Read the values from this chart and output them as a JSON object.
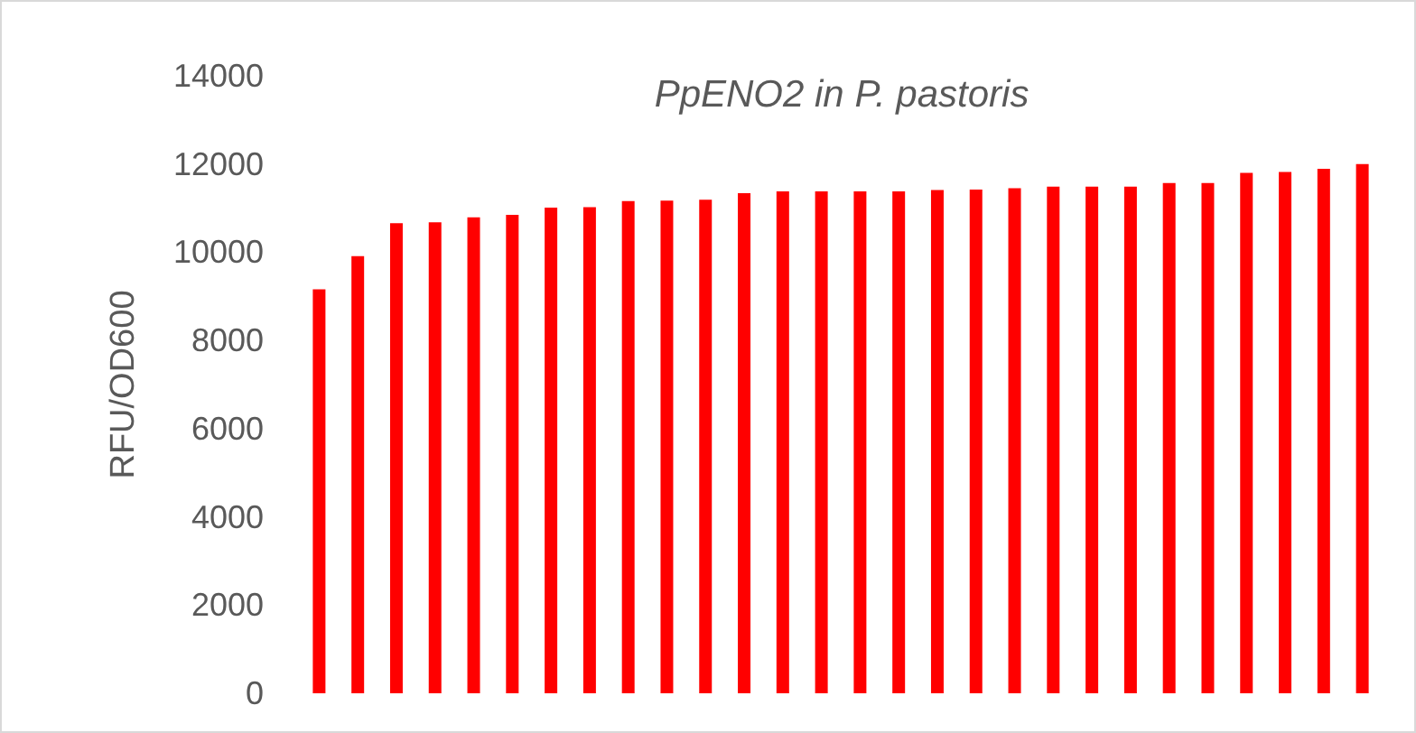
{
  "chart_data": {
    "type": "bar",
    "title": "PpENO2 in P. pastoris",
    "ylabel": "RFU/OD600",
    "categories": [
      null,
      null,
      null,
      null,
      null,
      null,
      null,
      null,
      null,
      null,
      null,
      null,
      null,
      null,
      null,
      null,
      null,
      null,
      null,
      null,
      null,
      null,
      null,
      null,
      null,
      null,
      null,
      null
    ],
    "values": [
      9160,
      9910,
      10660,
      10680,
      10790,
      10850,
      11010,
      11020,
      11160,
      11170,
      11190,
      11340,
      11380,
      11380,
      11380,
      11380,
      11410,
      11420,
      11450,
      11490,
      11490,
      11490,
      11570,
      11570,
      11800,
      11820,
      11890,
      12000
    ],
    "color": "#ff0000",
    "ylim": [
      0,
      14000
    ],
    "yticks": [
      0,
      2000,
      4000,
      6000,
      8000,
      10000,
      12000,
      14000
    ],
    "grid": false
  }
}
